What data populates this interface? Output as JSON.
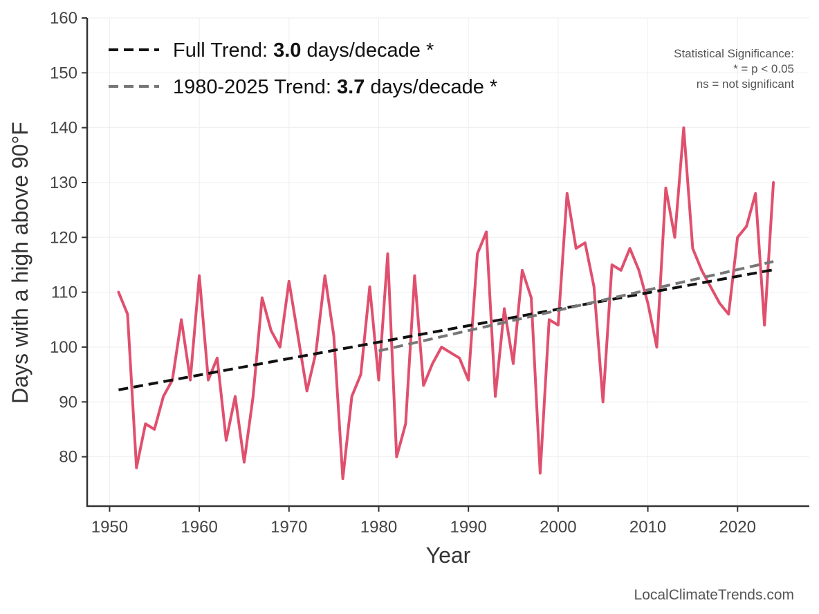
{
  "chart_data": {
    "type": "line",
    "xlabel": "Year",
    "ylabel": "Days with a high above 90°F",
    "xlim": [
      1947.5,
      2028
    ],
    "ylim": [
      71,
      160
    ],
    "x_ticks": [
      "1950",
      "1960",
      "1970",
      "1980",
      "1990",
      "2000",
      "2010",
      "2020"
    ],
    "y_ticks": [
      "80",
      "90",
      "100",
      "110",
      "120",
      "130",
      "140",
      "150",
      "160"
    ],
    "grid": true,
    "legend_position": "top-left",
    "series": [
      {
        "color": "#e0506e",
        "x": [
          1951,
          1952,
          1953,
          1954,
          1955,
          1956,
          1957,
          1958,
          1959,
          1960,
          1961,
          1962,
          1963,
          1964,
          1965,
          1966,
          1967,
          1968,
          1969,
          1970,
          1971,
          1972,
          1973,
          1974,
          1975,
          1976,
          1977,
          1978,
          1979,
          1980,
          1981,
          1982,
          1983,
          1984,
          1985,
          1986,
          1987,
          1988,
          1989,
          1990,
          1991,
          1992,
          1993,
          1994,
          1995,
          1996,
          1997,
          1998,
          1999,
          2000,
          2001,
          2002,
          2003,
          2004,
          2005,
          2006,
          2007,
          2008,
          2009,
          2010,
          2011,
          2012,
          2013,
          2014,
          2015,
          2016,
          2017,
          2018,
          2019,
          2020,
          2021,
          2022,
          2023,
          2024
        ],
        "y": [
          110,
          106,
          78,
          86,
          85,
          91,
          94,
          105,
          94,
          113,
          94,
          98,
          83,
          91,
          79,
          91,
          109,
          103,
          100,
          112,
          102,
          92,
          99,
          113,
          102,
          76,
          91,
          95,
          111,
          94,
          117,
          80,
          86,
          113,
          93,
          97,
          100,
          99,
          98,
          94,
          117,
          121,
          91,
          107,
          97,
          114,
          109,
          77,
          105,
          104,
          128,
          118,
          119,
          111,
          90,
          115,
          114,
          118,
          114,
          108,
          100,
          129,
          120,
          140,
          118,
          114,
          111,
          108,
          106,
          120,
          122,
          128,
          104,
          130
        ]
      }
    ],
    "trends": [
      {
        "label_prefix": "Full Trend: ",
        "rate": "3.0",
        "label_suffix": " days/decade *",
        "color": "#111111",
        "x": [
          1951,
          2024
        ],
        "y": [
          92.2,
          114.1
        ]
      },
      {
        "label_prefix": "1980-2025 Trend: ",
        "rate": "3.7",
        "label_suffix": " days/decade *",
        "color": "#777777",
        "x": [
          1980,
          2024
        ],
        "y": [
          99.3,
          115.6
        ]
      }
    ],
    "significance_note": [
      "Statistical Significance:",
      "* = p < 0.05",
      "ns = not significant"
    ],
    "credit": "LocalClimateTrends.com"
  }
}
